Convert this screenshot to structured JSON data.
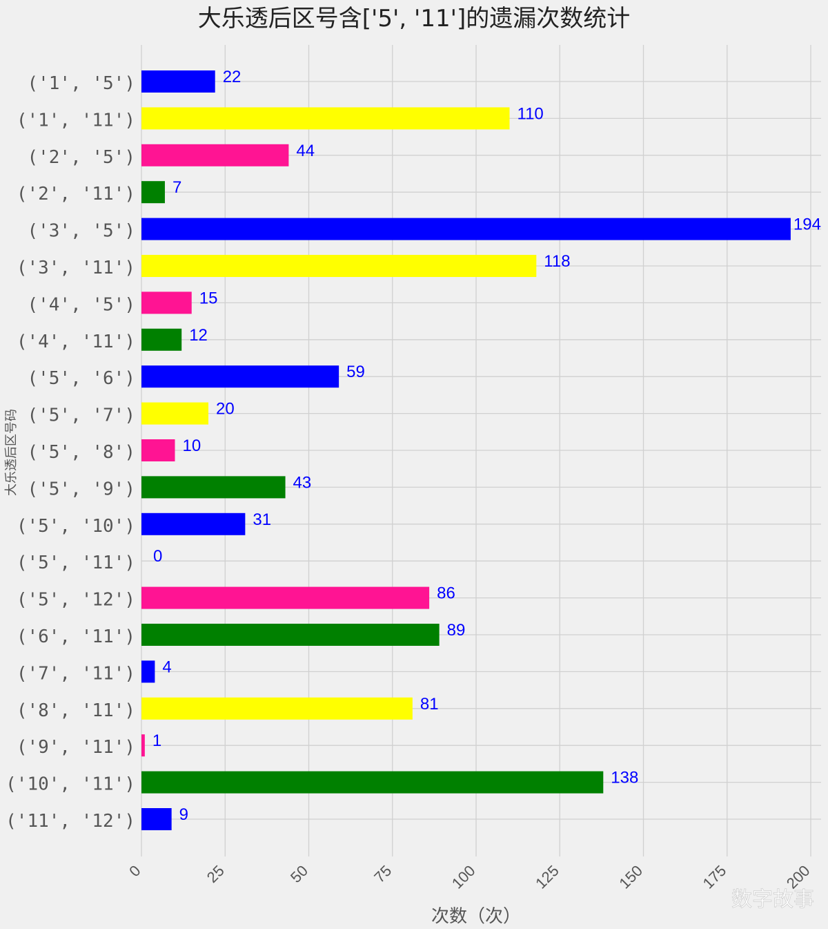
{
  "chart_data": {
    "type": "bar",
    "orientation": "horizontal",
    "title": "大乐透后区号含['5', '11']的遗漏次数统计",
    "xlabel": "次数（次）",
    "ylabel": "大乐透后区号码",
    "xlim": [
      0,
      200
    ],
    "xticks": [
      "0",
      "25",
      "50",
      "75",
      "100",
      "125",
      "150",
      "175",
      "200"
    ],
    "grid": true,
    "legend": "none",
    "categories": [
      "('1', '5')",
      "('1', '11')",
      "('2', '5')",
      "('2', '11')",
      "('3', '5')",
      "('3', '11')",
      "('4', '5')",
      "('4', '11')",
      "('5', '6')",
      "('5', '7')",
      "('5', '8')",
      "('5', '9')",
      "('5', '10')",
      "('5', '11')",
      "('5', '12')",
      "('6', '11')",
      "('7', '11')",
      "('8', '11')",
      "('9', '11')",
      "('10', '11')",
      "('11', '12')"
    ],
    "values": [
      22,
      110,
      44,
      7,
      194,
      118,
      15,
      12,
      59,
      20,
      10,
      43,
      31,
      0,
      86,
      89,
      4,
      81,
      1,
      138,
      9
    ],
    "colors": [
      "#0000ff",
      "#ffff00",
      "#ff1493",
      "#008000",
      "#0000ff",
      "#ffff00",
      "#ff1493",
      "#008000",
      "#0000ff",
      "#ffff00",
      "#ff1493",
      "#008000",
      "#0000ff",
      "#ff1493",
      "#ff1493",
      "#008000",
      "#0000ff",
      "#ffff00",
      "#ff1493",
      "#008000",
      "#0000ff"
    ],
    "label_color": "#0000ff"
  },
  "watermark": "数字故事"
}
